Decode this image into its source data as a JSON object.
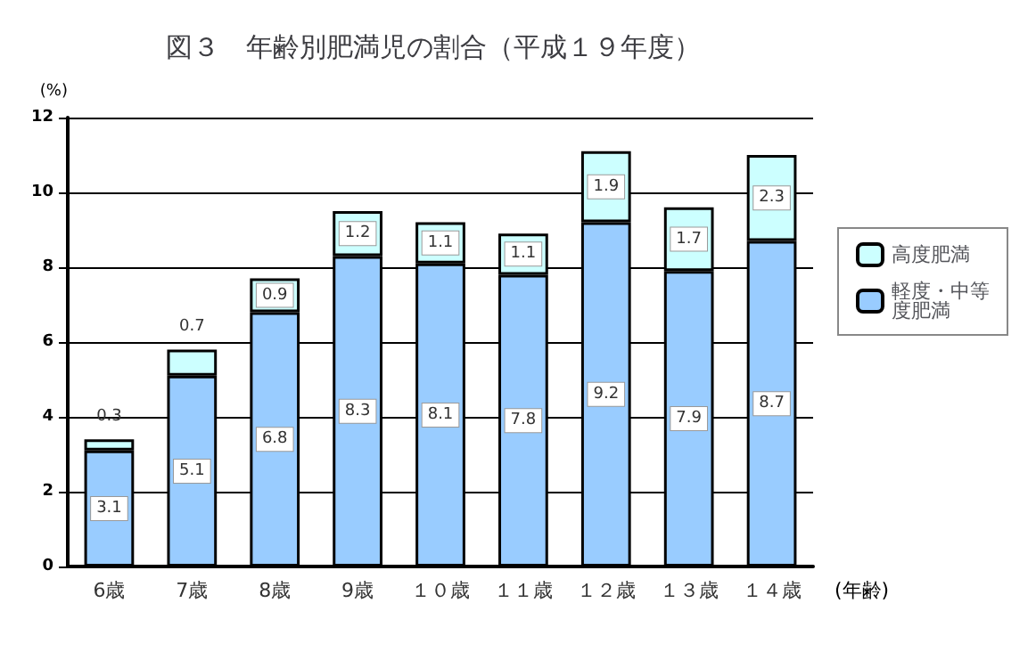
{
  "chart_data": {
    "type": "bar",
    "title": "図３　年齢別肥満児の割合（平成１９年度）",
    "ylabel": "(%)",
    "xlabel": "(年齢)",
    "categories": [
      "6歳",
      "7歳",
      "8歳",
      "9歳",
      "１０歳",
      "１１歳",
      "１２歳",
      "１３歳",
      "１４歳"
    ],
    "stacked": true,
    "data_labels": true,
    "series": [
      {
        "name": "軽度・中等度肥満",
        "color": "#99ccff",
        "values": [
          3.1,
          5.1,
          6.8,
          8.3,
          8.1,
          7.8,
          9.2,
          7.9,
          8.7
        ]
      },
      {
        "name": "高度肥満",
        "color": "#ccffff",
        "values": [
          0.3,
          0.7,
          0.9,
          1.2,
          1.1,
          1.1,
          1.9,
          1.7,
          2.3
        ]
      }
    ],
    "ylim": [
      0,
      12
    ],
    "yticks": [
      0,
      2,
      4,
      6,
      8,
      10,
      12
    ],
    "grid": "y",
    "legend": "right"
  }
}
